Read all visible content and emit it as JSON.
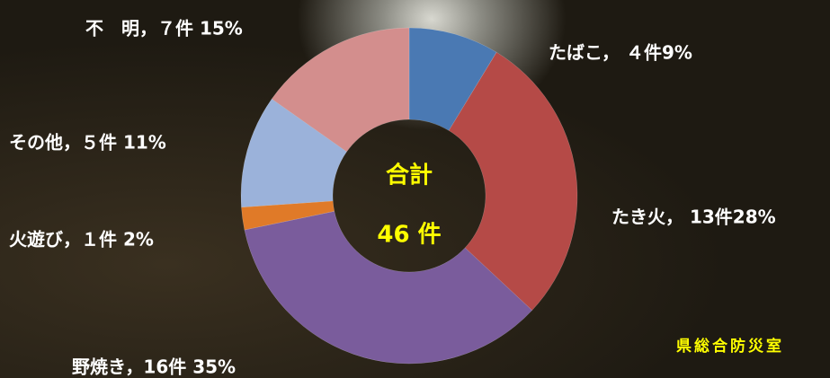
{
  "chart_data": {
    "type": "donut",
    "values": [
      4,
      13,
      16,
      1,
      5,
      7
    ],
    "value_labels": [
      "たばこ， ４件9%",
      "たき火， 13件28%",
      "野焼き，16件 35%",
      "火遊び，１件 2%",
      "その他，５件 11%",
      "不　明，７件 15%"
    ],
    "colors": [
      "#4a79b3",
      "#b54a47",
      "#7a5c9c",
      "#e07a28",
      "#9bb2da",
      "#d38e8d"
    ],
    "center_text": [
      "合計",
      "46 件"
    ],
    "source": "県総合防災室"
  }
}
